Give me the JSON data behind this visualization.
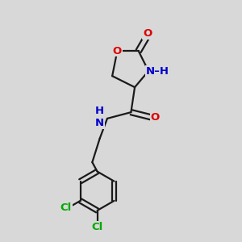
{
  "background_color": "#d8d8d8",
  "bond_color": "#1a1a1a",
  "bond_width": 1.6,
  "atom_colors": {
    "O": "#dd0000",
    "N": "#0000cc",
    "Cl": "#00aa00",
    "C": "#1a1a1a",
    "H": "#666666"
  },
  "font_size_atom": 9.5,
  "figsize": [
    3.0,
    3.0
  ],
  "dpi": 100
}
